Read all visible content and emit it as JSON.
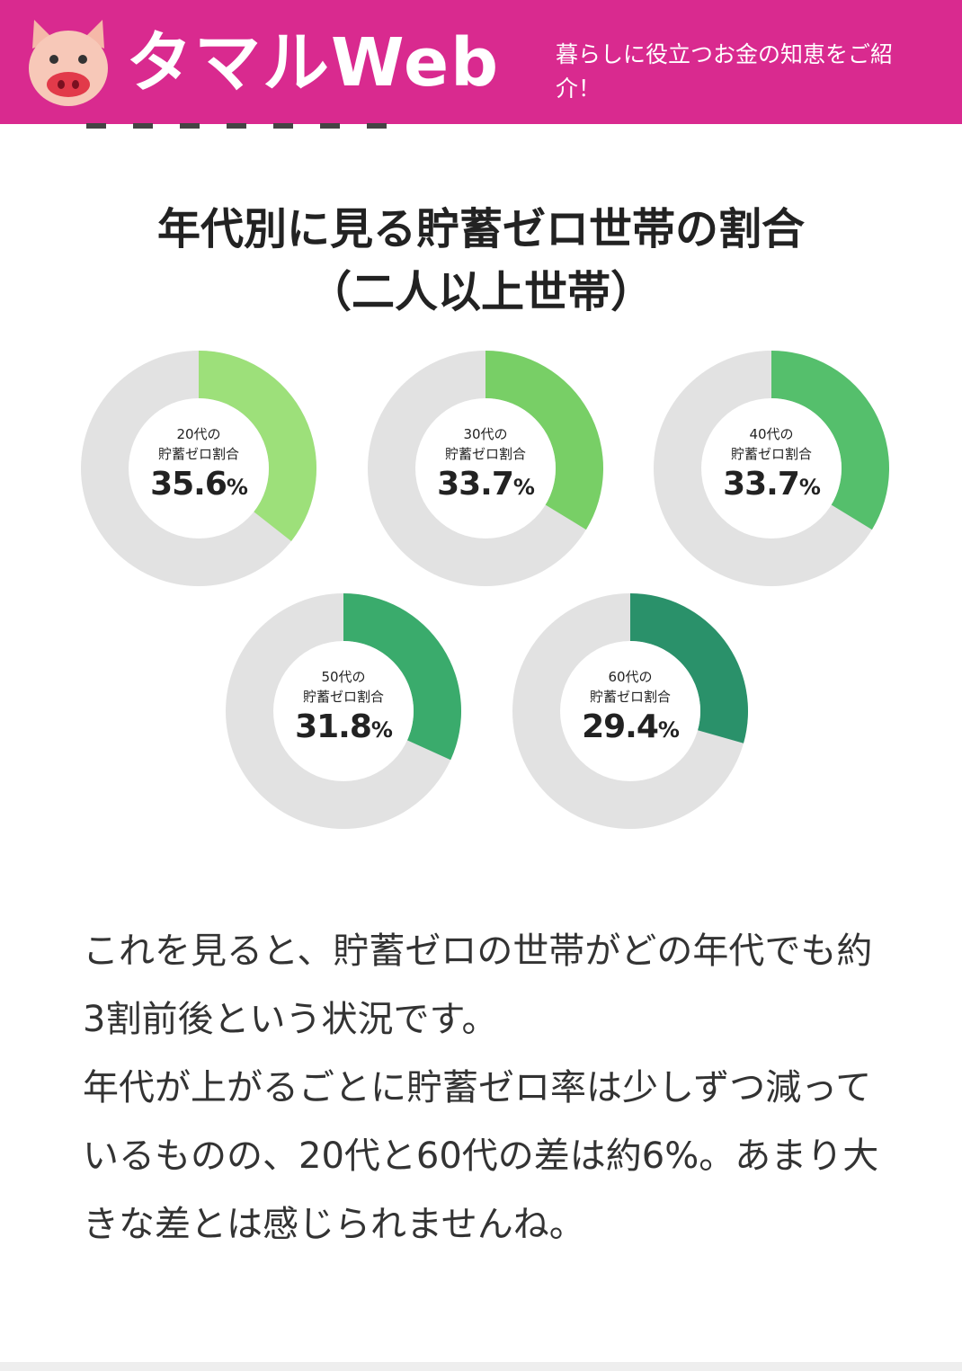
{
  "header": {
    "logo_text": "タマルWeb",
    "tagline": "暮らしに役立つお金の知恵をご紹介！",
    "bg_color": "#d92a8f"
  },
  "chart_data": {
    "type": "pie",
    "title": "年代別に見る貯蓄ゼロ世帯の割合",
    "subtitle": "（二人以上世帯）",
    "unit": "%",
    "series": [
      {
        "line1": "20代の",
        "line2": "貯蓄ゼロ割合",
        "value": 35.6,
        "value_label": "35.6",
        "color": "#9de07a"
      },
      {
        "line1": "30代の",
        "line2": "貯蓄ゼロ割合",
        "value": 33.7,
        "value_label": "33.7",
        "color": "#78cf66"
      },
      {
        "line1": "40代の",
        "line2": "貯蓄ゼロ割合",
        "value": 33.7,
        "value_label": "33.7",
        "color": "#55bf6c"
      },
      {
        "line1": "50代の",
        "line2": "貯蓄ゼロ割合",
        "value": 31.8,
        "value_label": "31.8",
        "color": "#3aab6c"
      },
      {
        "line1": "60代の",
        "line2": "貯蓄ゼロ割合",
        "value": 29.4,
        "value_label": "29.4",
        "color": "#2a916a"
      }
    ],
    "track_color": "#e2e2e2"
  },
  "article": {
    "paragraph1": "これを見ると、貯蓄ゼロの世帯がどの年代でも約3割前後という状況です。",
    "paragraph2": "年代が上がるごとに貯蓄ゼロ率は少しずつ減っているものの、20代と60代の差は約6%。あまり大きな差とは感じられませんね。"
  }
}
